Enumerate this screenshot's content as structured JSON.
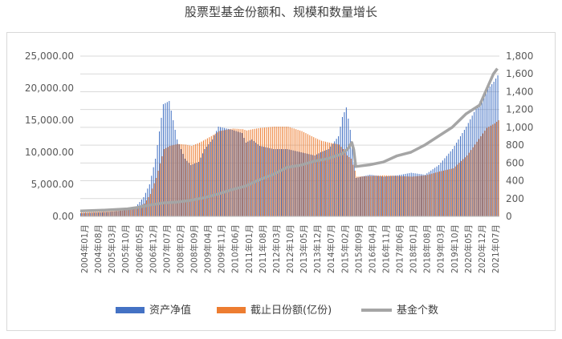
{
  "chart_data": {
    "type": "bar",
    "title": "股票型基金份额和、规模和数量增长",
    "left_axis": {
      "ylim": [
        0,
        25000
      ],
      "ticks": [
        "0.00",
        "5,000.00",
        "10,000.00",
        "15,000.00",
        "20,000.00",
        "25,000.00"
      ]
    },
    "right_axis": {
      "ylim": [
        0,
        1800
      ],
      "ticks": [
        "0",
        "200",
        "400",
        "600",
        "800",
        "1,000",
        "1,200",
        "1,400",
        "1,600",
        "1,800"
      ]
    },
    "x_tick_labels": [
      "2004年01月",
      "2004年08月",
      "2005年03月",
      "2005年10月",
      "2006年05月",
      "2006年12月",
      "2007年07月",
      "2008年02月",
      "2008年09月",
      "2009年04月",
      "2009年11月",
      "2010年06月",
      "2011年01月",
      "2011年08月",
      "2012年03月",
      "2012年10月",
      "2013年05月",
      "2013年12月",
      "2014年07月",
      "2015年02月",
      "2015年09月",
      "2016年04月",
      "2016年11月",
      "2017年06月",
      "2018年01月",
      "2018年08月",
      "2019年03月",
      "2019年10月",
      "2020年05月",
      "2020年12月",
      "2021年07月"
    ],
    "legend": [
      "资产净值",
      "截止日份额(亿份)",
      "基金个数"
    ],
    "legend_position": "bottom",
    "grid": true,
    "colors": {
      "nav": "#4472c4",
      "shares": "#ed7d31",
      "count": "#a5a5a5"
    },
    "series": [
      {
        "name": "资产净值",
        "type": "bar",
        "axis": "left",
        "x": [
          "2004-01",
          "2004-08",
          "2005-03",
          "2005-10",
          "2006-05",
          "2006-09",
          "2006-12",
          "2007-03",
          "2007-07",
          "2007-10",
          "2008-02",
          "2008-06",
          "2008-09",
          "2009-01",
          "2009-04",
          "2009-08",
          "2009-11",
          "2010-06",
          "2010-11",
          "2011-01",
          "2011-04",
          "2011-08",
          "2012-03",
          "2012-10",
          "2013-05",
          "2013-12",
          "2014-03",
          "2014-07",
          "2014-12",
          "2015-02",
          "2015-04",
          "2015-06",
          "2015-09",
          "2016-04",
          "2016-11",
          "2017-06",
          "2018-01",
          "2018-08",
          "2019-03",
          "2019-10",
          "2020-05",
          "2020-12",
          "2021-03",
          "2021-07",
          "2021-09"
        ],
        "values": [
          500,
          600,
          700,
          900,
          1500,
          3000,
          5000,
          9000,
          17500,
          18000,
          12000,
          9000,
          8000,
          8500,
          10500,
          12000,
          14000,
          13500,
          13000,
          11500,
          12000,
          11000,
          10500,
          10500,
          10000,
          9500,
          10000,
          10500,
          12500,
          15500,
          17000,
          13500,
          6000,
          6500,
          6200,
          6400,
          6800,
          6500,
          8000,
          10500,
          14000,
          18000,
          19500,
          21000,
          22000
        ]
      },
      {
        "name": "截止日份额(亿份)",
        "type": "bar",
        "axis": "left",
        "x": [
          "2004-01",
          "2004-08",
          "2005-03",
          "2005-10",
          "2006-05",
          "2006-09",
          "2006-12",
          "2007-03",
          "2007-07",
          "2007-10",
          "2008-02",
          "2008-06",
          "2008-09",
          "2009-01",
          "2009-04",
          "2009-08",
          "2009-11",
          "2010-06",
          "2010-11",
          "2011-01",
          "2011-04",
          "2011-08",
          "2012-03",
          "2012-10",
          "2013-05",
          "2013-12",
          "2014-03",
          "2014-07",
          "2014-12",
          "2015-02",
          "2015-04",
          "2015-06",
          "2015-09",
          "2016-04",
          "2016-11",
          "2017-06",
          "2018-01",
          "2018-08",
          "2019-03",
          "2019-10",
          "2020-05",
          "2020-12",
          "2021-03",
          "2021-07",
          "2021-09"
        ],
        "values": [
          600,
          700,
          800,
          1000,
          1300,
          2000,
          3500,
          6000,
          10500,
          11000,
          11300,
          11200,
          11000,
          11500,
          12000,
          12700,
          13300,
          13700,
          13600,
          13400,
          13600,
          13800,
          14000,
          14000,
          13300,
          12200,
          11800,
          11500,
          11200,
          10500,
          9500,
          9000,
          6200,
          6300,
          6400,
          6300,
          6200,
          6400,
          7000,
          7500,
          9500,
          12500,
          13800,
          14500,
          15000
        ]
      },
      {
        "name": "基金个数",
        "type": "line",
        "axis": "right",
        "x": [
          "2004-01",
          "2005-01",
          "2006-01",
          "2006-06",
          "2007-01",
          "2007-07",
          "2008-02",
          "2008-09",
          "2009-04",
          "2009-11",
          "2010-06",
          "2011-01",
          "2011-08",
          "2012-03",
          "2012-10",
          "2013-05",
          "2013-12",
          "2014-07",
          "2015-02",
          "2015-05",
          "2015-07",
          "2015-08",
          "2015-09",
          "2016-04",
          "2016-11",
          "2017-06",
          "2018-01",
          "2018-08",
          "2019-03",
          "2019-10",
          "2020-05",
          "2020-12",
          "2021-03",
          "2021-07",
          "2021-09"
        ],
        "values": [
          60,
          70,
          85,
          100,
          130,
          150,
          160,
          180,
          210,
          250,
          300,
          340,
          410,
          470,
          550,
          575,
          620,
          650,
          700,
          760,
          830,
          750,
          560,
          580,
          610,
          680,
          720,
          800,
          900,
          1000,
          1150,
          1250,
          1400,
          1600,
          1660
        ]
      }
    ]
  }
}
